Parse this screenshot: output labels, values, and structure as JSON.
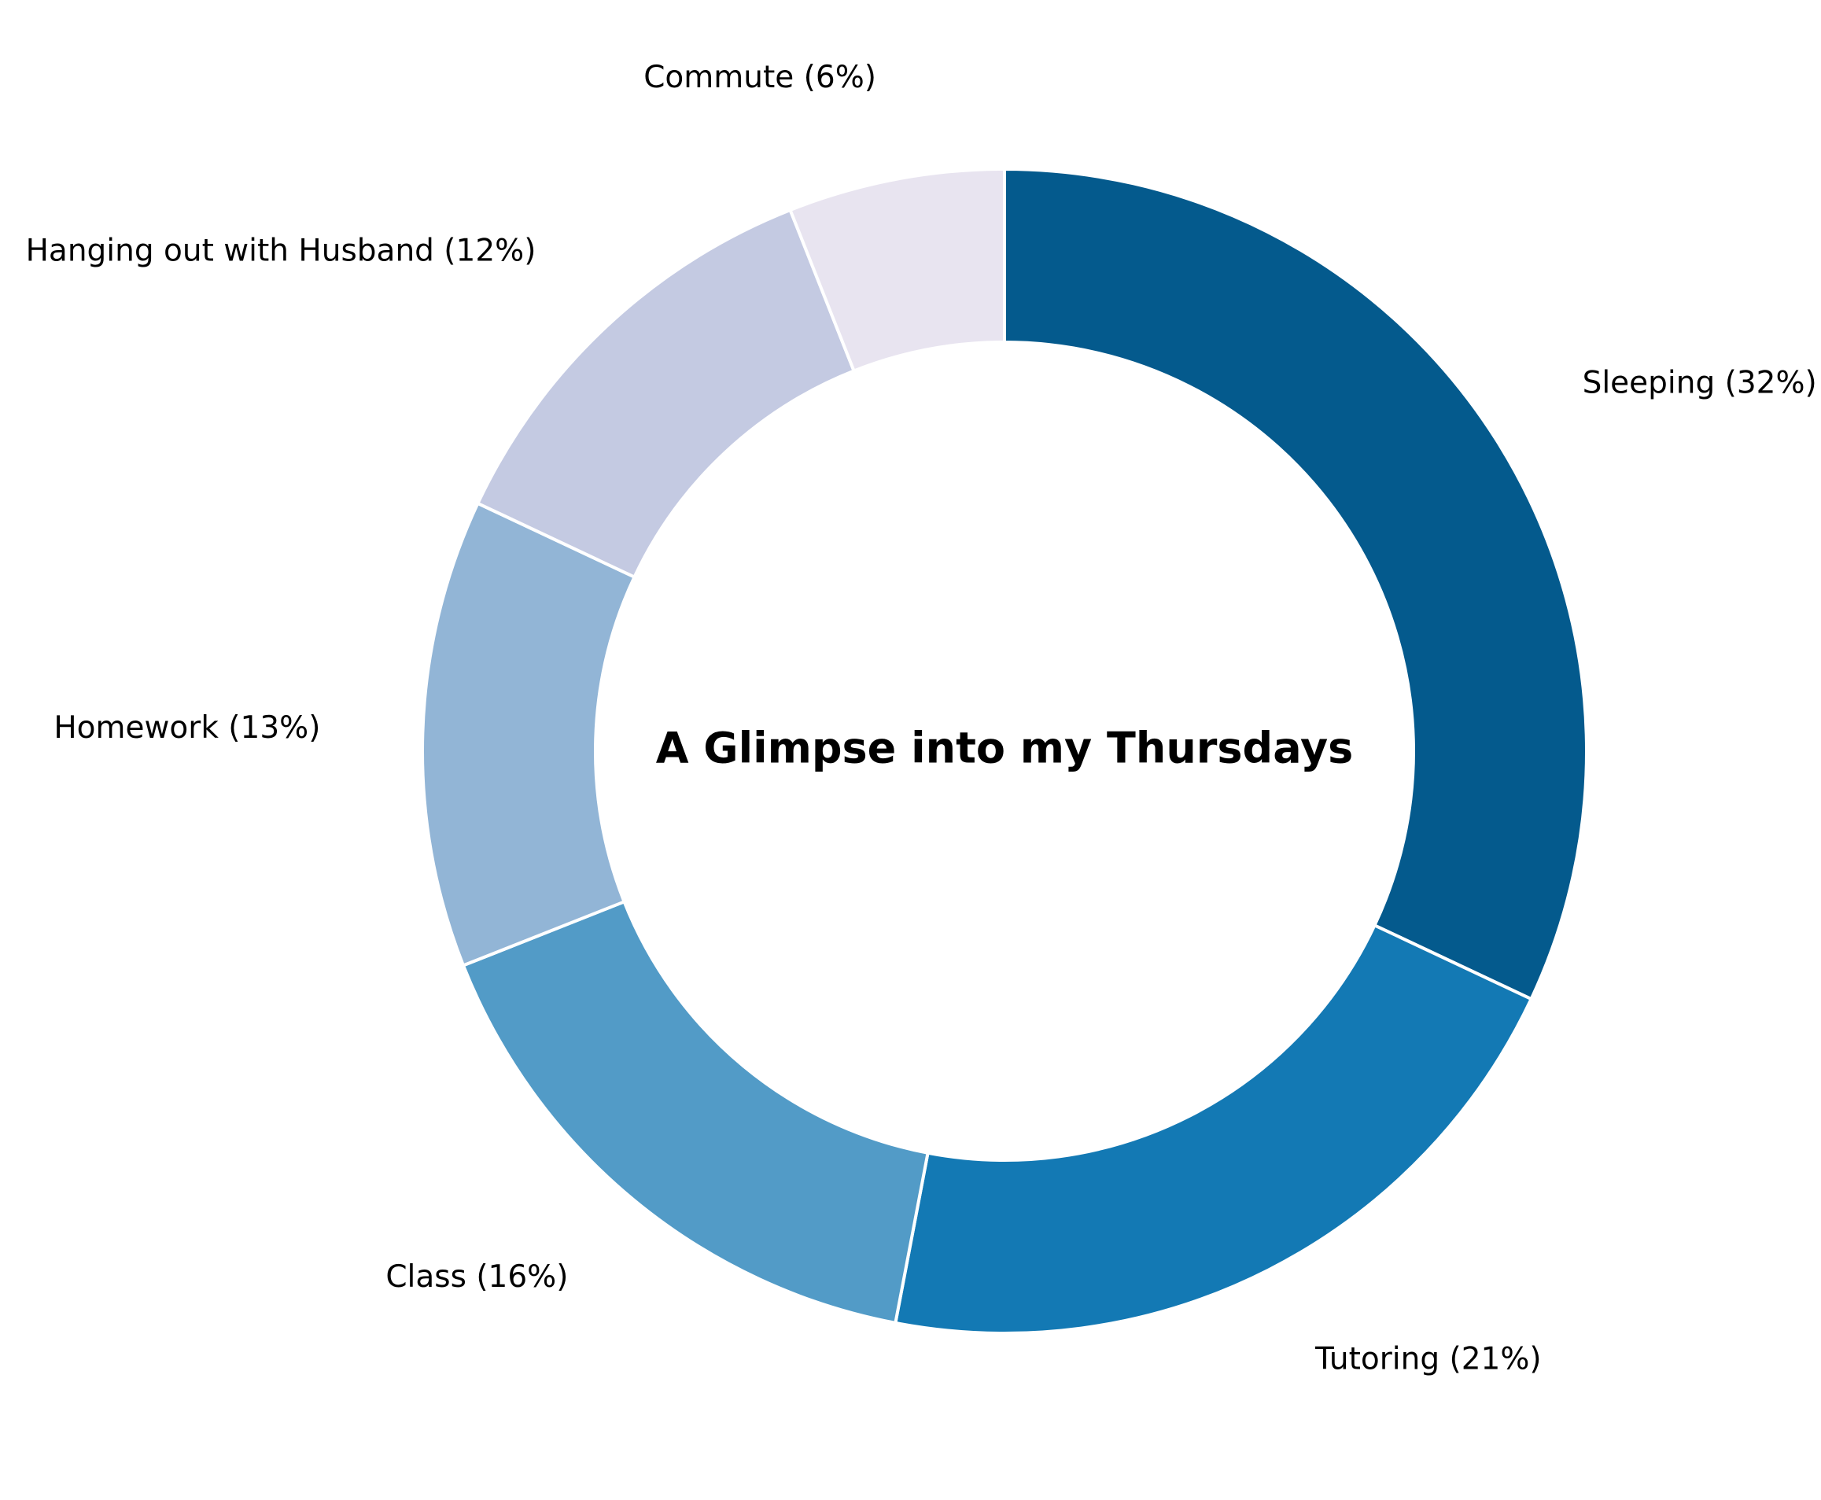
{
  "chart_data": {
    "type": "pie",
    "donut": true,
    "title": "A Glimpse into my Thursdays",
    "start_angle_deg": 90,
    "direction": "clockwise",
    "slices": [
      {
        "label": "Sleeping (32%)",
        "value": 32,
        "color": "#045a8d"
      },
      {
        "label": "Tutoring (21%)",
        "value": 21,
        "color": "#1379b4"
      },
      {
        "label": "Class (16%)",
        "value": 16,
        "color": "#529bc7"
      },
      {
        "label": "Homework (13%)",
        "value": 13,
        "color": "#92b5d6"
      },
      {
        "label": "Hanging out with Husband (12%)",
        "value": 12,
        "color": "#c4cae2"
      },
      {
        "label": "Commute (6%)",
        "value": 6,
        "color": "#e8e4f0"
      }
    ]
  }
}
